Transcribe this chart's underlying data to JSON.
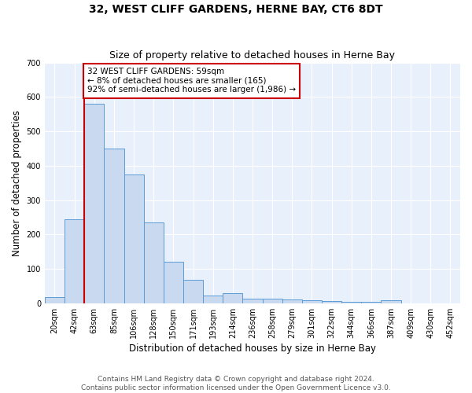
{
  "title": "32, WEST CLIFF GARDENS, HERNE BAY, CT6 8DT",
  "subtitle": "Size of property relative to detached houses in Herne Bay",
  "xlabel": "Distribution of detached houses by size in Herne Bay",
  "ylabel": "Number of detached properties",
  "categories": [
    "20sqm",
    "42sqm",
    "63sqm",
    "85sqm",
    "106sqm",
    "128sqm",
    "150sqm",
    "171sqm",
    "193sqm",
    "214sqm",
    "236sqm",
    "258sqm",
    "279sqm",
    "301sqm",
    "322sqm",
    "344sqm",
    "366sqm",
    "387sqm",
    "409sqm",
    "430sqm",
    "452sqm"
  ],
  "values": [
    17,
    245,
    580,
    450,
    375,
    235,
    120,
    68,
    22,
    30,
    13,
    13,
    10,
    8,
    7,
    5,
    4,
    8,
    0,
    0,
    0
  ],
  "bar_color": "#c8d9f0",
  "bar_edge_color": "#5b9bd5",
  "vline_x": 1.5,
  "vline_color": "#cc0000",
  "annotation_text": "32 WEST CLIFF GARDENS: 59sqm\n← 8% of detached houses are smaller (165)\n92% of semi-detached houses are larger (1,986) →",
  "annotation_box_color": "#ffffff",
  "annotation_box_edge": "#cc0000",
  "ylim": [
    0,
    700
  ],
  "yticks": [
    0,
    100,
    200,
    300,
    400,
    500,
    600,
    700
  ],
  "background_color": "#e8f0fb",
  "footer_text": "Contains HM Land Registry data © Crown copyright and database right 2024.\nContains public sector information licensed under the Open Government Licence v3.0.",
  "title_fontsize": 10,
  "subtitle_fontsize": 9,
  "axis_label_fontsize": 8.5,
  "tick_fontsize": 7,
  "footer_fontsize": 6.5
}
